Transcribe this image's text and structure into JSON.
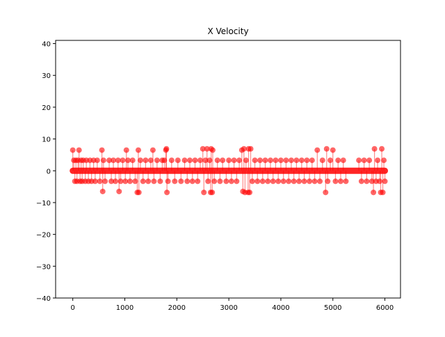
{
  "chart_data": {
    "type": "scatter",
    "title": "X Velocity",
    "xlabel": "",
    "ylabel": "",
    "xlim": [
      -330,
      6300
    ],
    "ylim": [
      -40,
      41
    ],
    "xticks": [
      0,
      1000,
      2000,
      3000,
      4000,
      5000,
      6000
    ],
    "yticks": [
      -40,
      -30,
      -20,
      -10,
      0,
      10,
      20,
      30,
      40
    ],
    "xtick_labels": [
      "0",
      "1000",
      "2000",
      "3000",
      "4000",
      "5000",
      "6000"
    ],
    "ytick_labels": [
      "−40",
      "−30",
      "−20",
      "−10",
      "0",
      "10",
      "20",
      "30",
      "40"
    ],
    "grid": false,
    "legend": "none",
    "marker_color": "#ff0000",
    "series": [
      {
        "values_zero_band_x": [
          0,
          6000
        ],
        "points": [
          [
            0,
            6.5
          ],
          [
            20,
            3.3
          ],
          [
            40,
            -3.3
          ],
          [
            60,
            3.3
          ],
          [
            80,
            -3.3
          ],
          [
            100,
            3.3
          ],
          [
            120,
            6.5
          ],
          [
            140,
            -3.3
          ],
          [
            160,
            3.3
          ],
          [
            180,
            -3.3
          ],
          [
            200,
            3.3
          ],
          [
            240,
            -3.3
          ],
          [
            260,
            3.3
          ],
          [
            300,
            -3.3
          ],
          [
            330,
            3.3
          ],
          [
            360,
            -3.3
          ],
          [
            400,
            3.3
          ],
          [
            430,
            -3.3
          ],
          [
            470,
            3.3
          ],
          [
            520,
            -3.3
          ],
          [
            560,
            6.5
          ],
          [
            575,
            -6.5
          ],
          [
            590,
            3.3
          ],
          [
            620,
            -3.3
          ],
          [
            700,
            3.3
          ],
          [
            740,
            -3.3
          ],
          [
            780,
            3.3
          ],
          [
            820,
            -3.3
          ],
          [
            870,
            3.3
          ],
          [
            890,
            -6.5
          ],
          [
            920,
            -3.3
          ],
          [
            960,
            3.3
          ],
          [
            1010,
            -3.3
          ],
          [
            1030,
            6.5
          ],
          [
            1060,
            3.3
          ],
          [
            1100,
            -3.3
          ],
          [
            1150,
            3.3
          ],
          [
            1200,
            -3.3
          ],
          [
            1240,
            -6.8
          ],
          [
            1260,
            6.5
          ],
          [
            1270,
            -6.8
          ],
          [
            1300,
            3.3
          ],
          [
            1350,
            -3.3
          ],
          [
            1400,
            3.3
          ],
          [
            1450,
            -3.3
          ],
          [
            1500,
            3.3
          ],
          [
            1540,
            6.5
          ],
          [
            1560,
            -3.3
          ],
          [
            1620,
            3.3
          ],
          [
            1680,
            -3.3
          ],
          [
            1720,
            3.3
          ],
          [
            1760,
            3.3
          ],
          [
            1790,
            6.5
          ],
          [
            1800,
            6.9
          ],
          [
            1810,
            -6.8
          ],
          [
            1830,
            -3.3
          ],
          [
            1900,
            3.3
          ],
          [
            1960,
            -3.3
          ],
          [
            2020,
            3.3
          ],
          [
            2080,
            -3.3
          ],
          [
            2150,
            3.3
          ],
          [
            2200,
            -3.3
          ],
          [
            2250,
            3.3
          ],
          [
            2300,
            -3.3
          ],
          [
            2350,
            3.3
          ],
          [
            2400,
            -3.3
          ],
          [
            2450,
            3.3
          ],
          [
            2500,
            6.9
          ],
          [
            2520,
            -6.8
          ],
          [
            2550,
            3.3
          ],
          [
            2580,
            6.9
          ],
          [
            2600,
            -3.3
          ],
          [
            2630,
            3.3
          ],
          [
            2650,
            -6.8
          ],
          [
            2660,
            6.9
          ],
          [
            2680,
            -6.8
          ],
          [
            2690,
            6.5
          ],
          [
            2720,
            -3.3
          ],
          [
            2780,
            3.3
          ],
          [
            2830,
            -3.3
          ],
          [
            2880,
            3.3
          ],
          [
            2950,
            -3.3
          ],
          [
            3000,
            3.3
          ],
          [
            3050,
            -3.3
          ],
          [
            3100,
            3.3
          ],
          [
            3150,
            -3.3
          ],
          [
            3200,
            3.3
          ],
          [
            3250,
            6.5
          ],
          [
            3270,
            -6.5
          ],
          [
            3290,
            6.9
          ],
          [
            3310,
            -6.8
          ],
          [
            3330,
            3.3
          ],
          [
            3370,
            -6.8
          ],
          [
            3380,
            6.9
          ],
          [
            3400,
            -6.8
          ],
          [
            3420,
            6.9
          ],
          [
            3450,
            -3.3
          ],
          [
            3500,
            3.3
          ],
          [
            3550,
            -3.3
          ],
          [
            3600,
            3.3
          ],
          [
            3650,
            -3.3
          ],
          [
            3700,
            3.3
          ],
          [
            3750,
            -3.3
          ],
          [
            3800,
            3.3
          ],
          [
            3850,
            -3.3
          ],
          [
            3900,
            3.3
          ],
          [
            3950,
            -3.3
          ],
          [
            4000,
            3.3
          ],
          [
            4050,
            -3.3
          ],
          [
            4100,
            3.3
          ],
          [
            4150,
            -3.3
          ],
          [
            4200,
            3.3
          ],
          [
            4250,
            -3.3
          ],
          [
            4300,
            3.3
          ],
          [
            4350,
            -3.3
          ],
          [
            4400,
            3.3
          ],
          [
            4450,
            -3.3
          ],
          [
            4500,
            3.3
          ],
          [
            4550,
            -3.3
          ],
          [
            4600,
            3.3
          ],
          [
            4650,
            -3.3
          ],
          [
            4700,
            6.5
          ],
          [
            4750,
            -3.3
          ],
          [
            4800,
            3.3
          ],
          [
            4860,
            -6.8
          ],
          [
            4880,
            6.9
          ],
          [
            4900,
            -3.3
          ],
          [
            4950,
            3.3
          ],
          [
            5000,
            6.5
          ],
          [
            5050,
            -3.3
          ],
          [
            5100,
            3.3
          ],
          [
            5150,
            -3.3
          ],
          [
            5200,
            3.3
          ],
          [
            5250,
            -3.3
          ],
          [
            5500,
            3.3
          ],
          [
            5550,
            -3.3
          ],
          [
            5600,
            3.3
          ],
          [
            5650,
            -3.3
          ],
          [
            5700,
            3.3
          ],
          [
            5750,
            -3.3
          ],
          [
            5780,
            -6.8
          ],
          [
            5800,
            6.9
          ],
          [
            5830,
            -3.3
          ],
          [
            5860,
            3.3
          ],
          [
            5900,
            -3.3
          ],
          [
            5920,
            -6.8
          ],
          [
            5940,
            6.9
          ],
          [
            5960,
            -6.8
          ],
          [
            5980,
            3.3
          ],
          [
            6000,
            -3.3
          ]
        ]
      }
    ]
  }
}
